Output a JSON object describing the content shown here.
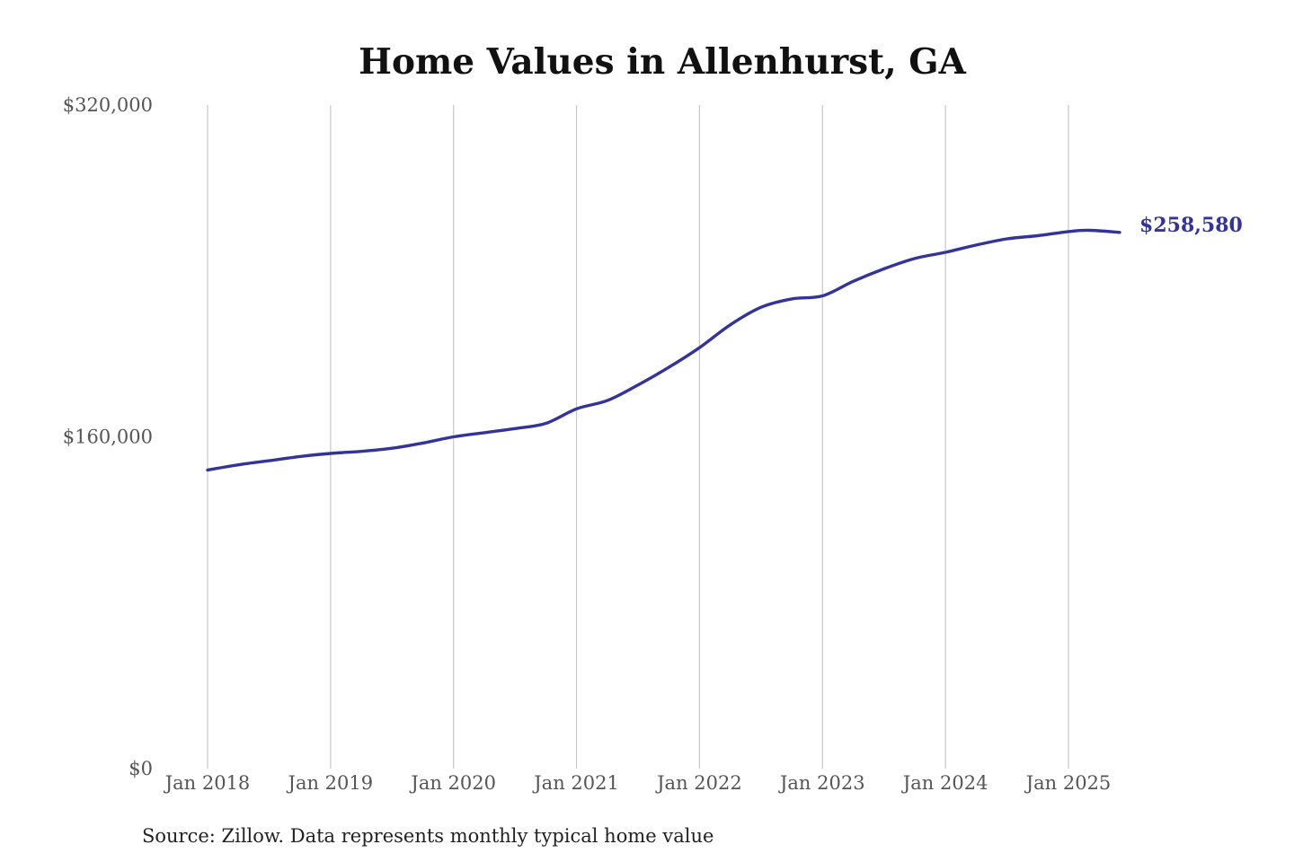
{
  "chart_data": {
    "type": "line",
    "title": "Home Values in Allenhurst, GA",
    "source": "Source: Zillow. Data represents monthly typical home value",
    "ylim": [
      0,
      320000
    ],
    "y_ticks": [
      {
        "value": 0,
        "label": "$0"
      },
      {
        "value": 160000,
        "label": "$160,000"
      },
      {
        "value": 320000,
        "label": "$320,000"
      }
    ],
    "x_ticks": [
      {
        "value": "2018-01",
        "label": "Jan 2018"
      },
      {
        "value": "2019-01",
        "label": "Jan 2019"
      },
      {
        "value": "2020-01",
        "label": "Jan 2020"
      },
      {
        "value": "2021-01",
        "label": "Jan 2021"
      },
      {
        "value": "2022-01",
        "label": "Jan 2022"
      },
      {
        "value": "2023-01",
        "label": "Jan 2023"
      },
      {
        "value": "2024-01",
        "label": "Jan 2024"
      },
      {
        "value": "2025-01",
        "label": "Jan 2025"
      }
    ],
    "grid": {
      "vertical": true,
      "horizontal": false
    },
    "line_color": "#33339a",
    "end_label": "$258,580",
    "series": [
      {
        "x": [
          "2018-01",
          "2018-04",
          "2018-07",
          "2018-10",
          "2019-01",
          "2019-04",
          "2019-07",
          "2019-10",
          "2020-01",
          "2020-04",
          "2020-07",
          "2020-10",
          "2021-01",
          "2021-04",
          "2021-07",
          "2021-10",
          "2022-01",
          "2022-04",
          "2022-07",
          "2022-10",
          "2023-01",
          "2023-04",
          "2023-07",
          "2023-10",
          "2024-01",
          "2024-04",
          "2024-07",
          "2024-10",
          "2025-01",
          "2025-03",
          "2025-06"
        ],
        "values": [
          144000,
          146500,
          148500,
          150500,
          152000,
          153000,
          154500,
          157000,
          160000,
          162000,
          164000,
          166500,
          173500,
          177500,
          185000,
          193500,
          203000,
          214000,
          222500,
          226500,
          228000,
          235000,
          241000,
          246000,
          249000,
          252500,
          255500,
          257000,
          259000,
          259600,
          258580
        ]
      }
    ]
  }
}
